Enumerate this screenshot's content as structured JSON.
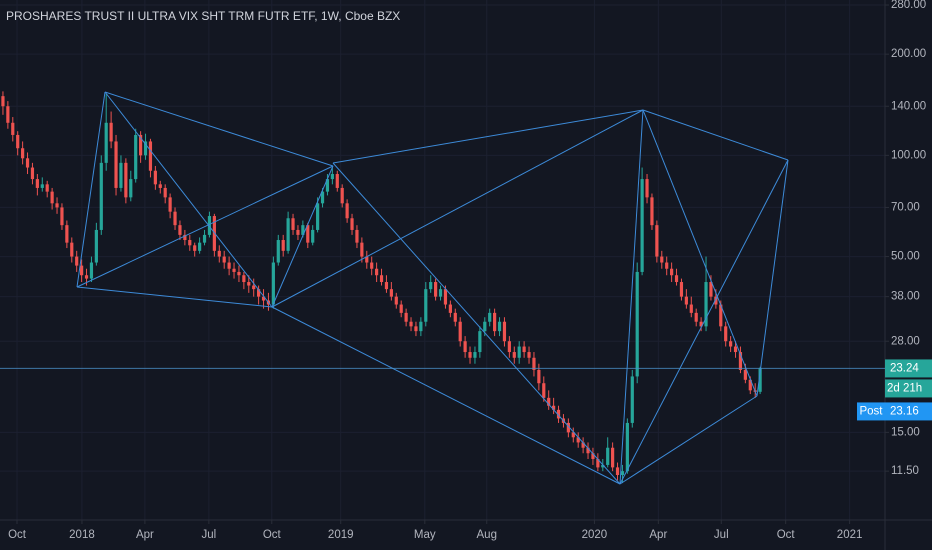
{
  "chart_data": {
    "type": "candlestick",
    "title": "PROSHARES TRUST II ULTRA VIX SHT TRM FUTR ETF, 1W, Cboe BZX",
    "log_scale": true,
    "grid": true,
    "up_color": "#26a69a",
    "down_color": "#ef5350",
    "ylim": [
      8.23,
      289.8
    ],
    "yticks": [
      {
        "value": 280,
        "label": "280.00"
      },
      {
        "value": 200,
        "label": "200.00"
      },
      {
        "value": 140,
        "label": "140.00"
      },
      {
        "value": 100,
        "label": "100.00"
      },
      {
        "value": 70,
        "label": "70.00"
      },
      {
        "value": 50,
        "label": "50.00"
      },
      {
        "value": 38,
        "label": "38.00"
      },
      {
        "value": 28,
        "label": "28.00"
      },
      {
        "value": 15,
        "label": "15.00"
      },
      {
        "value": 11.5,
        "label": "11.50"
      }
    ],
    "xlim": [
      0,
      180
    ],
    "xticks": [
      {
        "value": 3.46,
        "label": "Oct"
      },
      {
        "value": 16.67,
        "label": "2018"
      },
      {
        "value": 29.47,
        "label": "Apr"
      },
      {
        "value": 42.48,
        "label": "Jul"
      },
      {
        "value": 55.28,
        "label": "Oct"
      },
      {
        "value": 69.3,
        "label": "2019"
      },
      {
        "value": 86.4,
        "label": "May"
      },
      {
        "value": 99,
        "label": "Aug"
      },
      {
        "value": 120.9,
        "label": "2020"
      },
      {
        "value": 133.9,
        "label": "Apr"
      },
      {
        "value": 146.7,
        "label": "Jul"
      },
      {
        "value": 159.8,
        "label": "Oct"
      },
      {
        "value": 172.8,
        "label": "2021"
      }
    ],
    "last_price": {
      "value": 23.24,
      "label": "23.24"
    },
    "countdown": "2d 21h",
    "post_label": "Post",
    "post_price": {
      "value": 23.16,
      "label": "23.16"
    },
    "candles": [
      [
        150,
        155,
        132,
        140
      ],
      [
        140,
        145,
        120,
        125
      ],
      [
        125,
        130,
        110,
        115
      ],
      [
        115,
        118,
        100,
        105
      ],
      [
        105,
        110,
        94,
        98
      ],
      [
        98,
        102,
        88,
        92
      ],
      [
        92,
        95,
        82,
        85
      ],
      [
        85,
        88,
        76,
        80
      ],
      [
        80,
        86,
        78,
        82
      ],
      [
        82,
        84,
        75,
        78
      ],
      [
        78,
        80,
        69,
        72
      ],
      [
        72,
        75,
        67,
        70
      ],
      [
        70,
        72,
        60,
        62
      ],
      [
        62,
        64,
        53,
        55
      ],
      [
        55,
        57,
        48,
        50
      ],
      [
        50,
        52,
        45,
        47
      ],
      [
        47,
        49,
        42,
        44
      ],
      [
        44,
        46,
        41,
        43
      ],
      [
        43,
        50,
        42,
        48
      ],
      [
        48,
        63,
        47,
        60
      ],
      [
        60,
        100,
        58,
        95
      ],
      [
        95,
        152,
        90,
        125
      ],
      [
        125,
        135,
        105,
        110
      ],
      [
        110,
        115,
        76,
        80
      ],
      [
        80,
        100,
        78,
        95
      ],
      [
        95,
        98,
        72,
        75
      ],
      [
        75,
        90,
        73,
        85
      ],
      [
        85,
        120,
        83,
        115
      ],
      [
        115,
        118,
        95,
        100
      ],
      [
        100,
        116,
        97,
        110
      ],
      [
        110,
        112,
        86,
        90
      ],
      [
        90,
        93,
        79,
        82
      ],
      [
        82,
        84,
        77,
        80
      ],
      [
        80,
        82,
        72,
        75
      ],
      [
        75,
        77,
        65,
        68
      ],
      [
        68,
        70,
        60,
        62
      ],
      [
        62,
        64,
        56,
        58
      ],
      [
        58,
        60,
        54,
        56
      ],
      [
        56,
        58,
        52,
        54
      ],
      [
        54,
        55,
        50,
        52
      ],
      [
        52,
        57,
        51,
        55
      ],
      [
        55,
        60,
        54,
        58
      ],
      [
        58,
        68,
        57,
        66
      ],
      [
        66,
        67,
        50,
        52
      ],
      [
        52,
        54,
        48,
        50
      ],
      [
        50,
        52,
        46,
        48
      ],
      [
        48,
        50,
        44,
        46
      ],
      [
        46,
        48,
        43,
        45
      ],
      [
        45,
        47,
        42,
        44
      ],
      [
        44,
        45,
        40,
        42
      ],
      [
        42,
        44,
        39,
        41
      ],
      [
        41,
        43,
        38,
        40
      ],
      [
        40,
        41,
        36,
        38
      ],
      [
        38,
        40,
        35,
        37
      ],
      [
        37,
        39,
        34.5,
        36
      ],
      [
        36,
        50,
        35,
        48
      ],
      [
        48,
        58,
        47,
        56
      ],
      [
        56,
        58,
        50,
        52
      ],
      [
        52,
        68,
        51,
        65
      ],
      [
        65,
        67,
        58,
        60
      ],
      [
        60,
        62,
        56,
        58
      ],
      [
        58,
        64,
        57,
        62
      ],
      [
        62,
        63,
        53,
        55
      ],
      [
        55,
        62,
        54,
        60
      ],
      [
        60,
        75,
        59,
        72
      ],
      [
        72,
        80,
        70,
        78
      ],
      [
        78,
        88,
        76,
        85
      ],
      [
        85,
        92,
        82,
        88
      ],
      [
        88,
        90,
        78,
        80
      ],
      [
        80,
        82,
        70,
        72
      ],
      [
        72,
        74,
        63,
        65
      ],
      [
        65,
        67,
        58,
        60
      ],
      [
        60,
        62,
        53,
        55
      ],
      [
        55,
        57,
        48,
        50
      ],
      [
        50,
        52,
        46,
        48
      ],
      [
        48,
        50,
        44,
        46
      ],
      [
        46,
        48,
        42,
        44
      ],
      [
        44,
        46,
        41,
        42
      ],
      [
        42,
        44,
        39,
        40
      ],
      [
        40,
        42,
        37,
        38
      ],
      [
        38,
        39,
        35,
        36
      ],
      [
        36,
        37,
        33,
        34
      ],
      [
        34,
        35,
        31,
        32
      ],
      [
        32,
        33,
        30,
        31
      ],
      [
        31,
        32,
        29,
        30
      ],
      [
        30,
        33,
        29,
        32
      ],
      [
        32,
        42,
        31,
        40
      ],
      [
        40,
        44,
        39,
        42
      ],
      [
        42,
        43,
        37,
        38
      ],
      [
        38,
        41,
        37,
        40
      ],
      [
        40,
        41,
        35,
        36
      ],
      [
        36,
        37,
        33,
        34
      ],
      [
        34,
        35,
        31,
        32
      ],
      [
        32,
        33,
        27,
        28
      ],
      [
        28,
        29,
        25,
        26
      ],
      [
        26,
        27,
        24,
        25
      ],
      [
        25,
        27,
        24,
        26
      ],
      [
        26,
        31,
        25,
        30
      ],
      [
        30,
        33,
        29,
        32
      ],
      [
        32,
        35,
        31,
        34
      ],
      [
        34,
        35,
        29,
        30
      ],
      [
        30,
        33,
        29,
        32
      ],
      [
        32,
        33,
        27,
        28
      ],
      [
        28,
        29,
        25,
        26
      ],
      [
        26,
        27,
        24,
        25
      ],
      [
        25,
        28,
        24,
        27
      ],
      [
        27,
        28,
        25,
        26
      ],
      [
        26,
        27,
        24,
        25
      ],
      [
        25,
        26,
        22,
        23
      ],
      [
        23,
        24,
        20,
        21
      ],
      [
        21,
        22,
        18.5,
        19
      ],
      [
        19,
        20,
        17.5,
        18
      ],
      [
        18,
        19,
        17,
        17.5
      ],
      [
        17.5,
        18,
        16,
        16.5
      ],
      [
        16.5,
        17,
        15.5,
        16
      ],
      [
        16,
        16.5,
        14.5,
        15
      ],
      [
        15,
        15.5,
        14,
        14.5
      ],
      [
        14.5,
        15,
        13.5,
        14
      ],
      [
        14,
        14.5,
        13,
        13.5
      ],
      [
        13.5,
        14,
        12.5,
        13
      ],
      [
        13,
        13.5,
        12,
        12.5
      ],
      [
        12.5,
        13,
        11.5,
        11.8
      ],
      [
        11.8,
        12.5,
        11.5,
        12
      ],
      [
        12,
        14.5,
        11.8,
        13.5
      ],
      [
        13.5,
        14,
        11.5,
        11.8
      ],
      [
        11.8,
        12.2,
        10.8,
        11.2
      ],
      [
        11.2,
        12,
        10.6,
        11.5
      ],
      [
        11.5,
        16.5,
        11.3,
        16
      ],
      [
        16,
        23,
        15.5,
        22
      ],
      [
        22,
        48,
        21,
        45
      ],
      [
        45,
        92,
        44,
        85
      ],
      [
        85,
        88,
        72,
        75
      ],
      [
        75,
        77,
        60,
        62
      ],
      [
        62,
        64,
        48,
        50
      ],
      [
        50,
        52,
        46,
        48
      ],
      [
        48,
        50,
        44,
        46
      ],
      [
        46,
        48,
        42,
        44
      ],
      [
        44,
        46,
        41,
        42
      ],
      [
        42,
        43,
        37,
        38
      ],
      [
        38,
        40,
        35,
        36
      ],
      [
        36,
        38,
        33,
        34
      ],
      [
        34,
        35,
        31,
        32
      ],
      [
        32,
        33,
        30,
        31
      ],
      [
        31,
        50,
        30,
        42
      ],
      [
        42,
        44,
        37,
        38
      ],
      [
        38,
        40,
        35,
        36
      ],
      [
        36,
        37,
        30,
        31
      ],
      [
        31,
        32,
        27,
        28
      ],
      [
        28,
        29,
        26,
        27
      ],
      [
        27,
        28,
        25,
        26
      ],
      [
        26,
        27,
        22.5,
        23
      ],
      [
        23,
        24,
        21,
        21.5
      ],
      [
        21.5,
        22,
        19.5,
        20
      ],
      [
        20,
        21,
        19,
        19.8
      ],
      [
        19.8,
        23.5,
        19.5,
        23.24
      ]
    ]
  }
}
